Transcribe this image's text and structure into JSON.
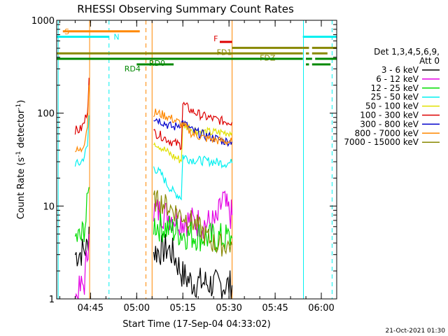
{
  "chart_data": {
    "type": "line",
    "title": "RHESSI Observing Summary Count Rates",
    "xlabel": "Start Time (17-Sep-04 04:33:02)",
    "ylabel_main": "Count Rate (s",
    "ylabel_sup": "-1",
    "ylabel_rest": " detector",
    "ylabel_sup2": "-1",
    "ylabel_end": ")",
    "y_scale": "log",
    "ylim": [
      1,
      1000
    ],
    "xlim_minutes": [
      274,
      365
    ],
    "y_ticks": [
      {
        "value": 1,
        "label": "1"
      },
      {
        "value": 10,
        "label": "10"
      },
      {
        "value": 100,
        "label": "100"
      },
      {
        "value": 1000,
        "label": "1000"
      }
    ],
    "x_ticks": [
      {
        "value": 285,
        "label": "04:45"
      },
      {
        "value": 300,
        "label": "05:00"
      },
      {
        "value": 315,
        "label": "05:15"
      },
      {
        "value": 330,
        "label": "05:30"
      },
      {
        "value": 345,
        "label": "05:45"
      },
      {
        "value": 360,
        "label": "06:00"
      }
    ],
    "legend_header": [
      "Det 1,3,4,5,6,9,",
      "Att 0"
    ],
    "series": [
      {
        "name": "3 - 6 keV",
        "color": "#000000",
        "segments": [
          [
            [
              280,
              3.0
            ],
            [
              282,
              3.2
            ],
            [
              284,
              3.6
            ],
            [
              284.5,
              6.0
            ]
          ],
          [
            [
              305.5,
              3.2
            ],
            [
              310,
              3.5
            ],
            [
              312,
              3.0
            ],
            [
              315,
              1.8
            ],
            [
              318,
              1.5
            ],
            [
              322,
              1.5
            ],
            [
              326,
              1.4
            ],
            [
              331,
              1.4
            ]
          ]
        ]
      },
      {
        "name": "6 - 12 keV",
        "color": "#e400e4",
        "segments": [
          [
            [
              280,
              1.0
            ],
            [
              283,
              1.5
            ],
            [
              284.5,
              5.0
            ]
          ],
          [
            [
              305.5,
              9.0
            ],
            [
              308,
              8.5
            ],
            [
              310,
              8.0
            ],
            [
              314,
              7.2
            ],
            [
              318,
              6.8
            ],
            [
              322,
              6.5
            ],
            [
              326,
              6.5
            ],
            [
              328,
              12
            ],
            [
              329,
              9.5
            ],
            [
              330.5,
              8.0
            ],
            [
              331,
              8.0
            ]
          ]
        ]
      },
      {
        "name": "12 - 25 keV",
        "color": "#00dd00",
        "segments": [
          [
            [
              280,
              4.5
            ],
            [
              282,
              4.5
            ],
            [
              283.5,
              7.0
            ],
            [
              284.5,
              16
            ]
          ],
          [
            [
              305.5,
              6.5
            ],
            [
              308,
              6.0
            ],
            [
              312,
              5.5
            ],
            [
              316,
              5.0
            ],
            [
              320,
              4.8
            ],
            [
              324,
              4.5
            ],
            [
              328,
              4.5
            ],
            [
              331,
              4.5
            ]
          ]
        ]
      },
      {
        "name": "25 - 50 keV",
        "color": "#00f0f0",
        "segments": [
          [
            [
              280,
              29
            ],
            [
              281,
              28
            ],
            [
              282,
              30
            ],
            [
              283,
              35
            ],
            [
              284,
              44
            ],
            [
              284.5,
              95
            ]
          ],
          [
            [
              305.5,
              26
            ],
            [
              308,
              22
            ],
            [
              310,
              17
            ],
            [
              312,
              14
            ],
            [
              314.5,
              12.5
            ],
            [
              315,
              35
            ],
            [
              317,
              32
            ],
            [
              320,
              31
            ],
            [
              325,
              30
            ],
            [
              328,
              29
            ],
            [
              331,
              29
            ]
          ]
        ]
      },
      {
        "name": "50 - 100 keV",
        "color": "#e0e000",
        "segments": [
          [
            [
              305.5,
              50
            ],
            [
              308,
              43
            ],
            [
              310,
              38
            ],
            [
              312,
              34
            ],
            [
              314.5,
              31
            ],
            [
              315,
              75
            ],
            [
              318,
              68
            ],
            [
              321,
              63
            ],
            [
              324,
              62
            ],
            [
              328,
              62
            ],
            [
              331,
              62
            ]
          ]
        ]
      },
      {
        "name": "100 - 300 keV",
        "color": "#dd0000",
        "segments": [
          [
            [
              280,
              66
            ],
            [
              281,
              65
            ],
            [
              282,
              68
            ],
            [
              283,
              80
            ],
            [
              284,
              110
            ],
            [
              284.5,
              240
            ]
          ],
          [
            [
              305.5,
              62
            ],
            [
              308,
              57
            ],
            [
              310,
              52
            ],
            [
              312,
              48
            ],
            [
              314.5,
              45
            ],
            [
              315,
              125
            ],
            [
              318,
              105
            ],
            [
              322,
              92
            ],
            [
              326,
              85
            ],
            [
              328,
              82
            ],
            [
              331,
              80
            ]
          ]
        ]
      },
      {
        "name": "300 - 800 keV",
        "color": "#0000cc",
        "segments": [
          [
            [
              305.5,
              90
            ],
            [
              308,
              82
            ],
            [
              310,
              75
            ],
            [
              312,
              70
            ],
            [
              315,
              80
            ],
            [
              318,
              65
            ],
            [
              322,
              58
            ],
            [
              326,
              53
            ],
            [
              328,
              50
            ],
            [
              331,
              50
            ]
          ]
        ]
      },
      {
        "name": "800 - 7000 keV",
        "color": "#ff8800",
        "segments": [
          [
            [
              280,
              40
            ],
            [
              281,
              39
            ],
            [
              282,
              40
            ],
            [
              283,
              50
            ],
            [
              284,
              75
            ],
            [
              284.5,
              200
            ]
          ],
          [
            [
              305.5,
              102
            ],
            [
              308,
              97
            ],
            [
              310,
              92
            ],
            [
              312,
              85
            ],
            [
              314,
              78
            ],
            [
              316,
              70
            ],
            [
              318,
              60
            ],
            [
              322,
              54
            ],
            [
              326,
              51
            ],
            [
              328,
              50
            ],
            [
              331,
              49
            ]
          ]
        ]
      },
      {
        "name": "7000 - 15000 keV",
        "color": "#888800",
        "segments": [
          [
            [
              305.5,
              11.5
            ],
            [
              308,
              11.0
            ],
            [
              310,
              10.0
            ],
            [
              312,
              9.0
            ],
            [
              314,
              8.2
            ],
            [
              316,
              7.5
            ],
            [
              318,
              6.8
            ],
            [
              320,
              6.0
            ],
            [
              322,
              5.0
            ],
            [
              324,
              4.2
            ],
            [
              326,
              3.8
            ],
            [
              328,
              3.8
            ],
            [
              331,
              3.8
            ]
          ]
        ]
      }
    ],
    "bars": [
      {
        "label": "S",
        "color": "#ff8800",
        "label_x": 276.5,
        "y": 760,
        "ranges": [
          [
            276,
            301
          ]
        ]
      },
      {
        "label": "N",
        "color": "#00f0f0",
        "label_x": 292.5,
        "y": 665,
        "ranges": [
          [
            274,
            291
          ]
        ]
      },
      {
        "label": "N",
        "color": "#00f0f0",
        "label_x": null,
        "y": 665,
        "ranges": [
          [
            354,
            365
          ]
        ]
      },
      {
        "label": "F",
        "color": "#dd0000",
        "label_x": 325,
        "y": 585,
        "ranges": [
          [
            327,
            331
          ]
        ]
      },
      {
        "label": "FD1",
        "color": "#888800",
        "label_x": 326,
        "y": 505,
        "ranges": [
          [
            331,
            354
          ],
          [
            354,
            356
          ],
          [
            357,
            365
          ]
        ]
      },
      {
        "label": "FDZ",
        "color": "#888800",
        "label_x": 340,
        "y": 440,
        "ranges": [
          [
            274,
            354
          ],
          [
            355,
            356
          ],
          [
            357,
            362
          ]
        ]
      },
      {
        "label": "RD0",
        "color": "#008800",
        "label_x": 304,
        "y": 385,
        "ranges": [
          [
            274,
            354
          ],
          [
            355,
            357
          ],
          [
            358,
            365
          ]
        ]
      },
      {
        "label": "RD4",
        "color": "#008800",
        "label_x": 296,
        "y": 335,
        "ranges": [
          [
            300,
            312
          ],
          [
            355,
            356
          ],
          [
            357,
            363
          ]
        ]
      }
    ],
    "vlines": [
      {
        "x": 274.5,
        "color": "#00f0f0",
        "style": "solid"
      },
      {
        "x": 284.7,
        "color": "#ff8800",
        "style": "solid"
      },
      {
        "x": 291.0,
        "color": "#00f0f0",
        "style": "dashed"
      },
      {
        "x": 303.0,
        "color": "#ff8800",
        "style": "dashed"
      },
      {
        "x": 305.0,
        "color": "#ff8800",
        "style": "solid"
      },
      {
        "x": 331.0,
        "color": "#ff8800",
        "style": "solid"
      },
      {
        "x": 354.2,
        "color": "#00f0f0",
        "style": "solid"
      },
      {
        "x": 363.5,
        "color": "#00f0f0",
        "style": "dashed"
      }
    ],
    "timestamp": "21-Oct-2021 01:30"
  }
}
